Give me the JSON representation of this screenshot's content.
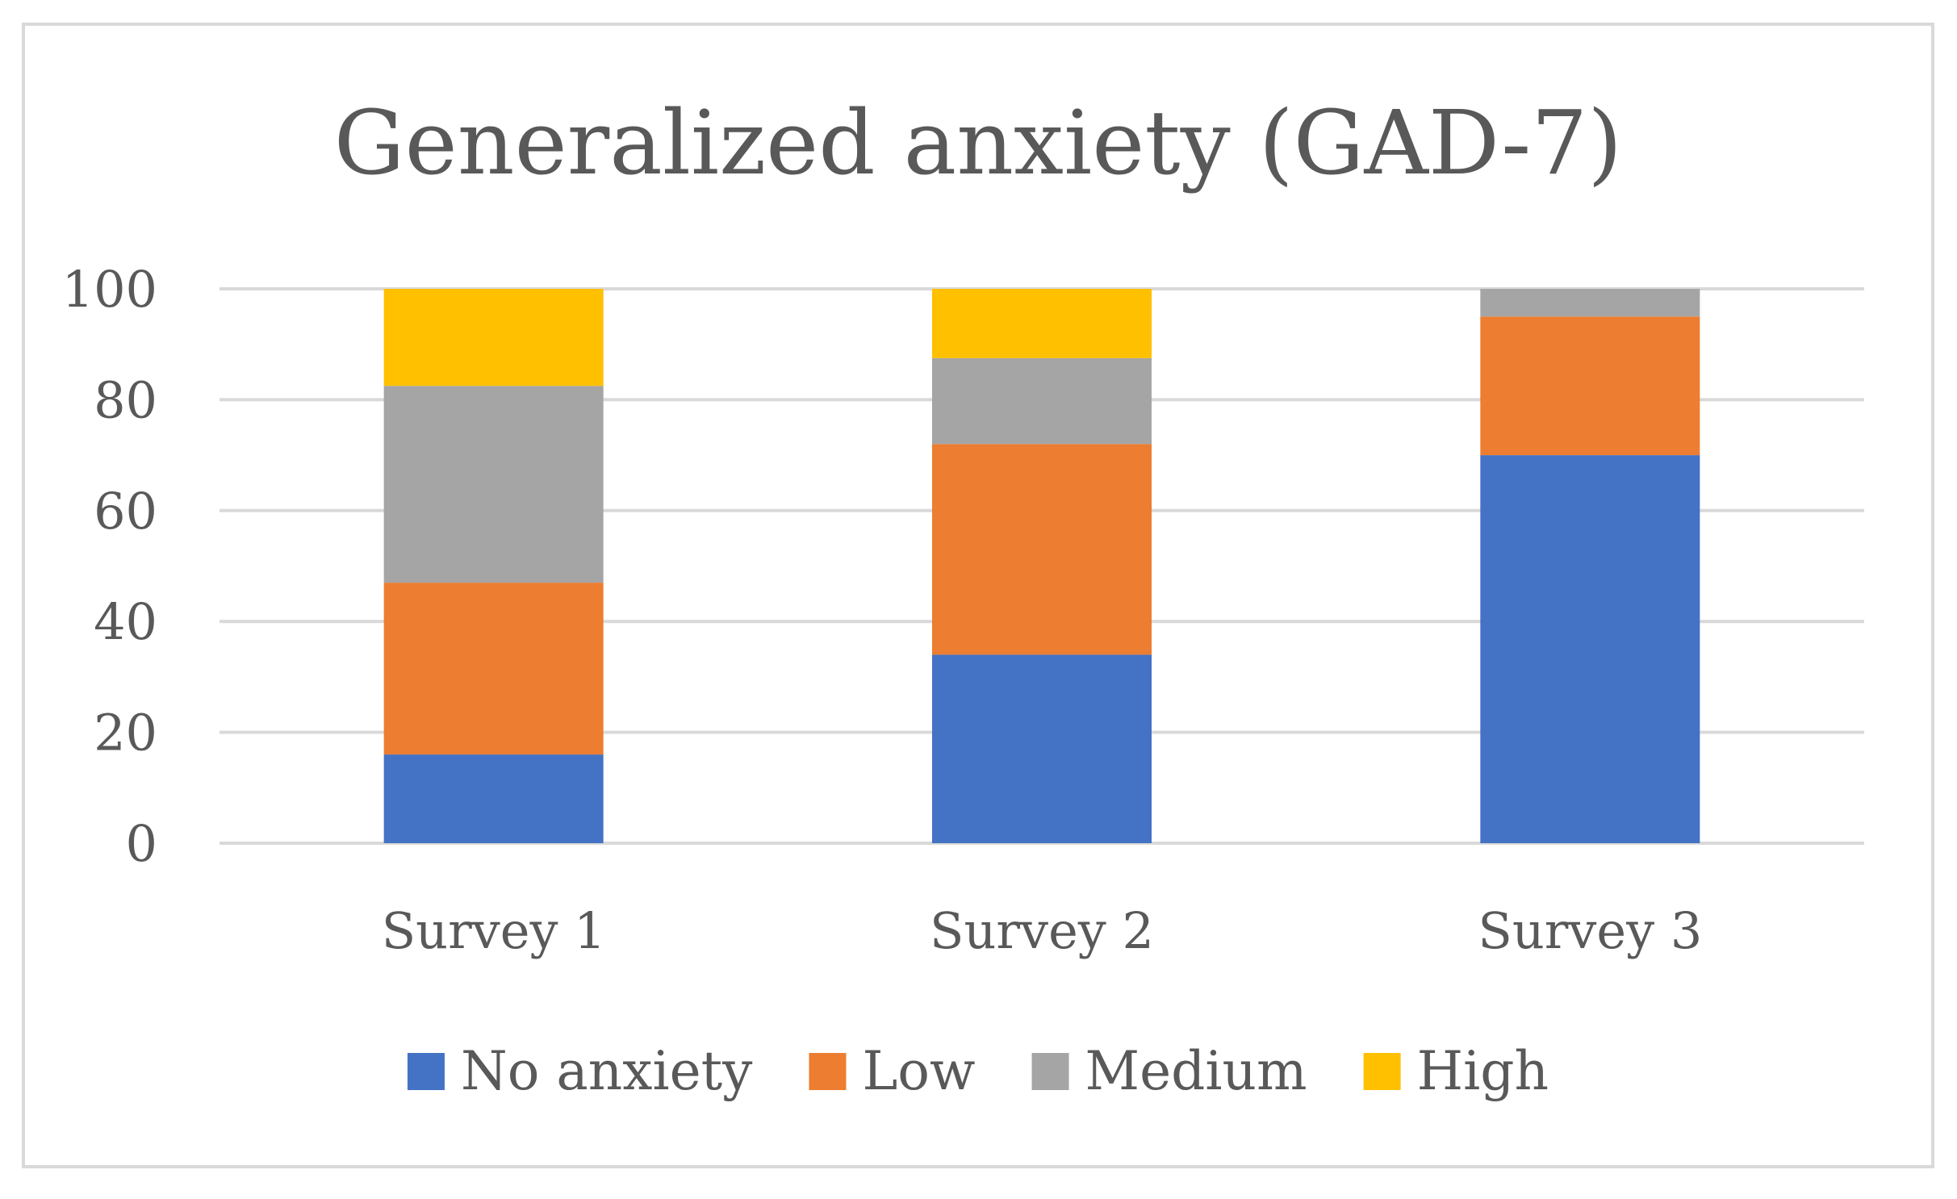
{
  "chart_data": {
    "type": "bar",
    "stacked": true,
    "title": "Generalized anxiety (GAD-7)",
    "categories": [
      "Survey 1",
      "Survey 2",
      "Survey 3"
    ],
    "series": [
      {
        "name": "No anxiety",
        "color": "#4472C4",
        "values": [
          16,
          34,
          70
        ]
      },
      {
        "name": "Low",
        "color": "#ED7D31",
        "values": [
          31,
          38,
          25
        ]
      },
      {
        "name": "Medium",
        "color": "#A5A5A5",
        "values": [
          35.5,
          15.5,
          5
        ]
      },
      {
        "name": "High",
        "color": "#FFC000",
        "values": [
          17.5,
          12.5,
          0
        ]
      }
    ],
    "xlabel": "",
    "ylabel": "",
    "ylim": [
      0,
      100
    ],
    "yticks": [
      "0",
      "20",
      "40",
      "60",
      "80",
      "100"
    ],
    "grid": true,
    "legend_position": "bottom"
  }
}
